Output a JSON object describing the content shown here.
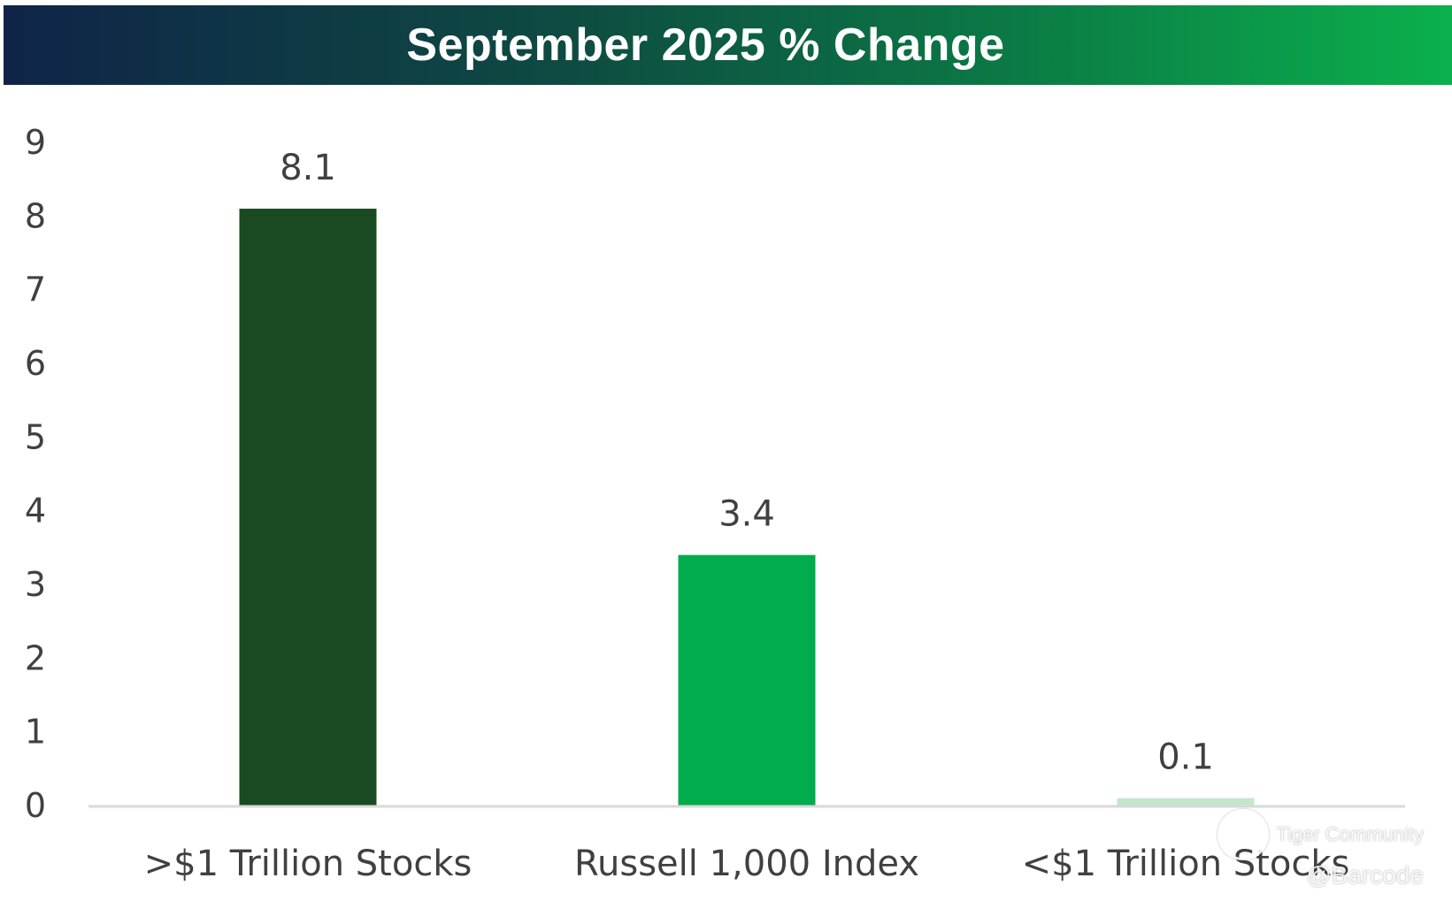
{
  "chart_data": {
    "type": "bar",
    "title": "September 2025 % Change",
    "categories": [
      ">$1 Trillion Stocks",
      "Russell 1,000 Index",
      "<$1 Trillion Stocks"
    ],
    "values": [
      8.1,
      3.4,
      0.1
    ],
    "data_labels": [
      "8.1",
      "3.4",
      "0.1"
    ],
    "bar_colors": [
      "#1a4a22",
      "#00ac4e",
      "#c3e7cc"
    ],
    "ylim": [
      0,
      9
    ],
    "yticks": [
      0,
      1,
      2,
      3,
      4,
      5,
      6,
      7,
      8,
      9
    ],
    "xlabel": "",
    "ylabel": "",
    "grid": false,
    "legend": "none"
  },
  "colors": {
    "title_gradient_start": "#0f2448",
    "title_gradient_end": "#0bb04d",
    "axis_line": "#d9d9d9",
    "text": "#404040"
  },
  "watermark": {
    "brand": "Tiger Community",
    "user": "@Barcode",
    "icon": "tiger-logo-icon"
  }
}
